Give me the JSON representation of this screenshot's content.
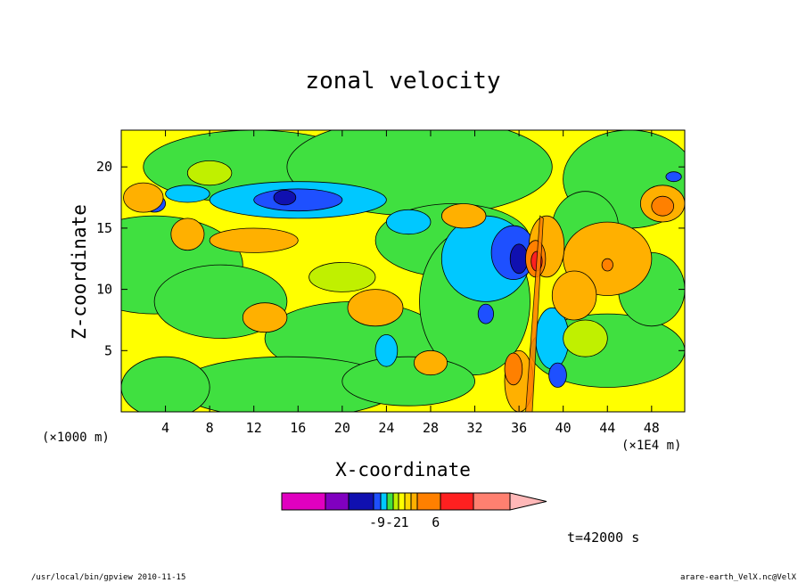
{
  "chart_data": {
    "type": "heatmap",
    "title": "zonal velocity",
    "xlabel": "X-coordinate",
    "ylabel": "Z-coordinate",
    "x_unit_left": "(×1000 m)",
    "x_unit_right": "(×1E4 m)",
    "xlim": [
      0,
      51
    ],
    "ylim": [
      0,
      23
    ],
    "xticks": [
      4,
      8,
      12,
      16,
      20,
      24,
      28,
      32,
      36,
      40,
      44,
      48
    ],
    "yticks": [
      5,
      10,
      15,
      20
    ],
    "colorbar": {
      "colors": [
        "#e000c0",
        "#8000c0",
        "#1010b0",
        "#1e50ff",
        "#00c8ff",
        "#40e040",
        "#c0f000",
        "#ffff00",
        "#ffd800",
        "#ffb000",
        "#ff8000",
        "#ff2020",
        "#ff8070",
        "#ffb8b8"
      ],
      "labels": [
        {
          "value": "-9",
          "at": 3.5
        },
        {
          "value": "-2",
          "at": 6
        },
        {
          "value": "1",
          "at": 8
        },
        {
          "value": "6",
          "at": 10.8
        }
      ]
    },
    "time_label": "t=42000 s",
    "field_features": [
      {
        "x": 15.5,
        "z": 17.5,
        "value": -9
      },
      {
        "x": 37.5,
        "z": 12.5,
        "value": 6
      },
      {
        "x": 35.5,
        "z": 3.5,
        "value": 6
      },
      {
        "x": 49,
        "z": 17,
        "value": 4
      }
    ]
  },
  "footer": {
    "left": "/usr/local/bin/gpview  2010-11-15",
    "right": "arare-earth_VelX.nc@VelX"
  }
}
